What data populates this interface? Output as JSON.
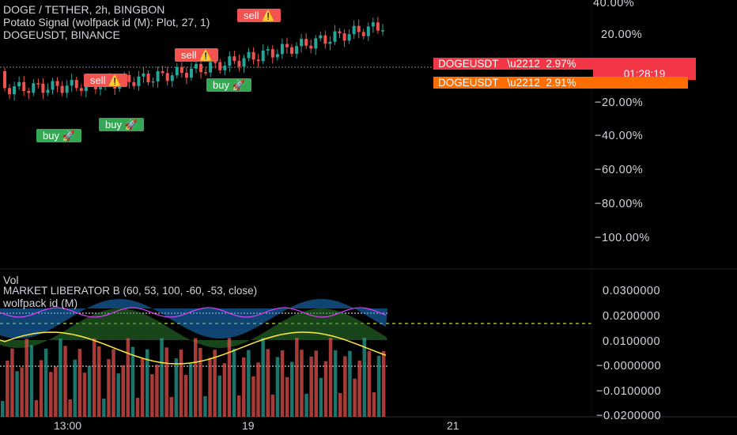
{
  "main_pane": {
    "legend": {
      "symbol_line": "DOGE / TETHER, 2h, BINGBON",
      "indicator_line": "Potato Signal (wolfpack id (M): Plot, 27, 1)",
      "compare_line": "DOGEUSDT, BINANCE"
    },
    "price_axis_labels": [
      "40.00%",
      "20.00%",
      "−20.00%",
      "−40.00%",
      "−60.00%",
      "−80.00%",
      "−100.00%"
    ],
    "price_tags": {
      "primary": {
        "symbol": "DOGEUSDT",
        "value": "2.97%",
        "countdown": "01:28:19",
        "color": "#f23645"
      },
      "secondary": {
        "symbol": "DOGEUSDT",
        "value": "2.91%",
        "color": "#ff6d00"
      }
    },
    "signals": {
      "sell_label": "sell ⚠️",
      "buy_label": "buy 🚀"
    }
  },
  "lower_pane": {
    "legend": {
      "volume_line": "Vol",
      "market_liberator_line": "MARKET LIBERATOR B (60, 53, 100, -60, -53, close)",
      "wolfpack_line": "wolfpack id (M)"
    },
    "axis_labels": [
      "0.0300000",
      "0.0200000",
      "0.0100000",
      "−0.0000000",
      "−0.0100000",
      "−0.0200000"
    ]
  },
  "time_axis": {
    "labels": [
      "13:00",
      "19",
      "21"
    ]
  },
  "colors": {
    "background": "#000000",
    "up_candle": "#26a69a",
    "down_candle": "#ef5350",
    "buy_signal": "#34a853",
    "sell_signal": "#f05350",
    "dashed_level": "#b5e61d"
  }
}
